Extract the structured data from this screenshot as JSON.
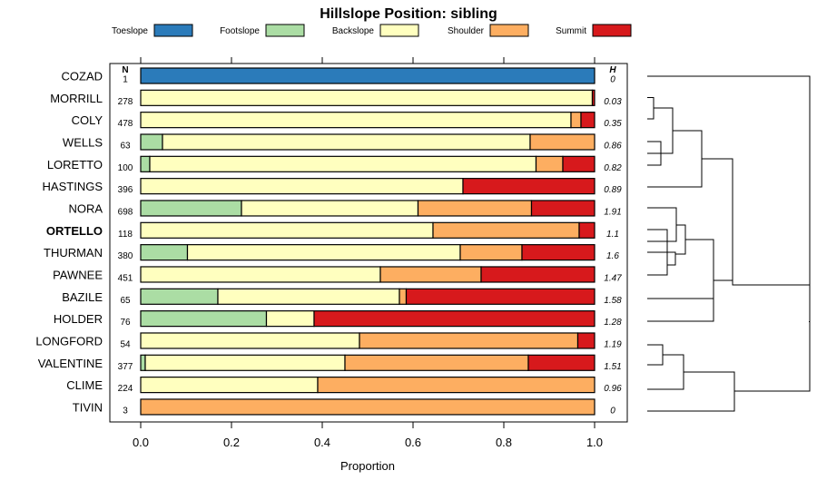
{
  "chart_data": {
    "type": "bar",
    "orientation": "horizontal",
    "stacked": true,
    "title": "Hillslope Position: sibling",
    "xlabel": "Proportion",
    "ylabel": "",
    "xlim": [
      0,
      1
    ],
    "x_ticks": [
      "0.0",
      "0.2",
      "0.4",
      "0.6",
      "0.8",
      "1.0"
    ],
    "n_header": "N",
    "h_header": "H",
    "legend": [
      {
        "name": "Toeslope",
        "color": "#2b7bba"
      },
      {
        "name": "Footslope",
        "color": "#abdda4"
      },
      {
        "name": "Backslope",
        "color": "#ffffbf"
      },
      {
        "name": "Shoulder",
        "color": "#fdae61"
      },
      {
        "name": "Summit",
        "color": "#d7191c"
      }
    ],
    "categories": [
      "COZAD",
      "MORRILL",
      "COLY",
      "WELLS",
      "LORETTO",
      "HASTINGS",
      "NORA",
      "ORTELLO",
      "THURMAN",
      "PAWNEE",
      "BAZILE",
      "HOLDER",
      "LONGFORD",
      "VALENTINE",
      "CLIME",
      "TIVIN"
    ],
    "bold_category": "ORTELLO",
    "n": [
      "1",
      "278",
      "478",
      "63",
      "100",
      "396",
      "698",
      "118",
      "380",
      "451",
      "65",
      "76",
      "54",
      "377",
      "224",
      "3"
    ],
    "h": [
      "0",
      "0.03",
      "0.35",
      "0.86",
      "0.82",
      "0.89",
      "1.91",
      "1.1",
      "1.6",
      "1.47",
      "1.58",
      "1.28",
      "1.19",
      "1.51",
      "0.96",
      "0"
    ],
    "series": [
      {
        "name": "Toeslope",
        "values": [
          1,
          0,
          0,
          0,
          0,
          0,
          0,
          0,
          0,
          0,
          0,
          0,
          0,
          0,
          0,
          0
        ]
      },
      {
        "name": "Footslope",
        "values": [
          0,
          0,
          0,
          0.048,
          0.02,
          0,
          0.222,
          0,
          0.103,
          0,
          0.17,
          0.277,
          0,
          0.01,
          0,
          0
        ]
      },
      {
        "name": "Backslope",
        "values": [
          0,
          0.995,
          0.948,
          0.81,
          0.851,
          0.71,
          0.389,
          0.644,
          0.601,
          0.528,
          0.4,
          0.105,
          0.482,
          0.44,
          0.39,
          0
        ]
      },
      {
        "name": "Shoulder",
        "values": [
          0,
          0,
          0.022,
          0.142,
          0.059,
          0,
          0.25,
          0.322,
          0.136,
          0.222,
          0.015,
          0,
          0.481,
          0.404,
          0.61,
          1
        ]
      },
      {
        "name": "Summit",
        "values": [
          0,
          0.005,
          0.03,
          0,
          0.07,
          0.29,
          0.139,
          0.034,
          0.16,
          0.25,
          0.415,
          0.618,
          0.037,
          0.146,
          0,
          0
        ]
      }
    ]
  }
}
